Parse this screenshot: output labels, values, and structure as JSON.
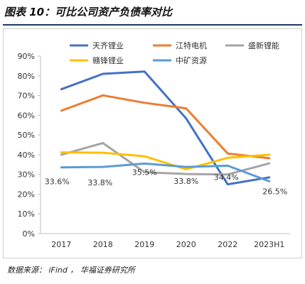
{
  "figure_title": "图表 10：可比公司资产负债率对比",
  "source_note": "数据来源： iFind ， 华福证券研究所",
  "chart_data": {
    "type": "line",
    "title": "",
    "xlabel": "",
    "ylabel": "",
    "x": [
      "2017",
      "2018",
      "2019",
      "2020",
      "2022",
      "2023H1"
    ],
    "ylim": [
      0,
      90
    ],
    "yticks": [
      "0%",
      "10%",
      "20%",
      "30%",
      "40%",
      "50%",
      "60%",
      "70%",
      "80%",
      "90%"
    ],
    "grid": false,
    "legend_position": "top",
    "series": [
      {
        "name": "天齐锂业",
        "color": "#4472c4",
        "values": [
          73.2,
          81.0,
          82.2,
          58.4,
          25.0,
          28.5
        ]
      },
      {
        "name": "江特电机",
        "color": "#ed7d31",
        "values": [
          62.3,
          70.1,
          66.3,
          63.5,
          40.6,
          38.2
        ]
      },
      {
        "name": "盛新锂能",
        "color": "#a5a5a5",
        "values": [
          40.0,
          45.9,
          31.1,
          30.2,
          30.0,
          35.6
        ]
      },
      {
        "name": "赣锋锂业",
        "color": "#ffc000",
        "values": [
          41.2,
          41.0,
          39.2,
          32.6,
          38.4,
          40.0
        ]
      },
      {
        "name": "中矿资源",
        "color": "#5b9bd5",
        "values": [
          33.6,
          33.8,
          35.5,
          33.8,
          34.4,
          26.5
        ]
      }
    ],
    "data_labels": [
      {
        "series": "中矿资源",
        "x": "2017",
        "text": "33.6%"
      },
      {
        "series": "中矿资源",
        "x": "2018",
        "text": "33.8%"
      },
      {
        "series": "中矿资源",
        "x": "2019",
        "text": "35.5%"
      },
      {
        "series": "中矿资源",
        "x": "2020",
        "text": "33.8%"
      },
      {
        "series": "中矿资源",
        "x": "2022",
        "text": "34.4%"
      },
      {
        "series": "中矿资源",
        "x": "2023H1",
        "text": "26.5%"
      }
    ]
  }
}
